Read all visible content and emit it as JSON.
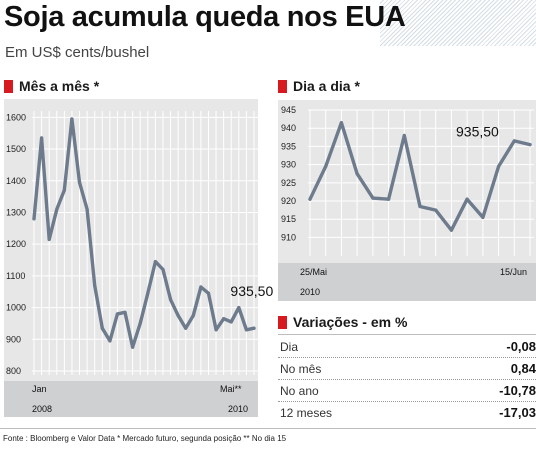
{
  "title": "Soja acumula queda nos EUA",
  "subtitle": "Em US$ cents/bushel",
  "chart_data": [
    {
      "type": "line",
      "title": "Mês a mês *",
      "ylim": [
        800,
        1620
      ],
      "yticks": [
        800,
        900,
        1000,
        1100,
        1200,
        1300,
        1400,
        1500,
        1600
      ],
      "x_start_label": "Jan",
      "x_end_label": "Mai**",
      "year_start": "2008",
      "year_end": "2010",
      "annotation": "935,50",
      "series": [
        {
          "color": "#6d7b8c",
          "values": [
            1280,
            1535,
            1215,
            1310,
            1370,
            1595,
            1395,
            1310,
            1070,
            935,
            895,
            980,
            985,
            875,
            950,
            1045,
            1145,
            1120,
            1025,
            975,
            935,
            975,
            1065,
            1045,
            930,
            965,
            955,
            1000,
            930,
            935
          ]
        }
      ]
    },
    {
      "type": "line",
      "title": "Dia a dia *",
      "ylim": [
        906,
        945
      ],
      "yticks": [
        910,
        915,
        920,
        925,
        930,
        935,
        940,
        945
      ],
      "x_start_label": "25/Mai",
      "x_end_label": "15/Jun",
      "year": "2010",
      "annotation": "935,50",
      "series": [
        {
          "color": "#6d7b8c",
          "values": [
            920.5,
            929.5,
            941.5,
            927.5,
            920.8,
            920.5,
            938,
            918.5,
            917.5,
            912,
            920.5,
            915.5,
            929.5,
            936.5,
            935.5
          ]
        }
      ]
    }
  ],
  "variations": {
    "title": "Variações - em %",
    "rows": [
      {
        "label": "Dia",
        "value": "-0,08"
      },
      {
        "label": "No mês",
        "value": "0,84"
      },
      {
        "label": "No ano",
        "value": "-10,78"
      },
      {
        "label": "12 meses",
        "value": "-17,03"
      }
    ]
  },
  "footer": "Fonte : Bloomberg e Valor Data * Mercado futuro, segunda posição ** No dia 15",
  "colors": {
    "accent": "#d71920",
    "line": "#6d7b8c",
    "panel": "#e7e7e8",
    "axis_band": "#cfd0d2"
  }
}
